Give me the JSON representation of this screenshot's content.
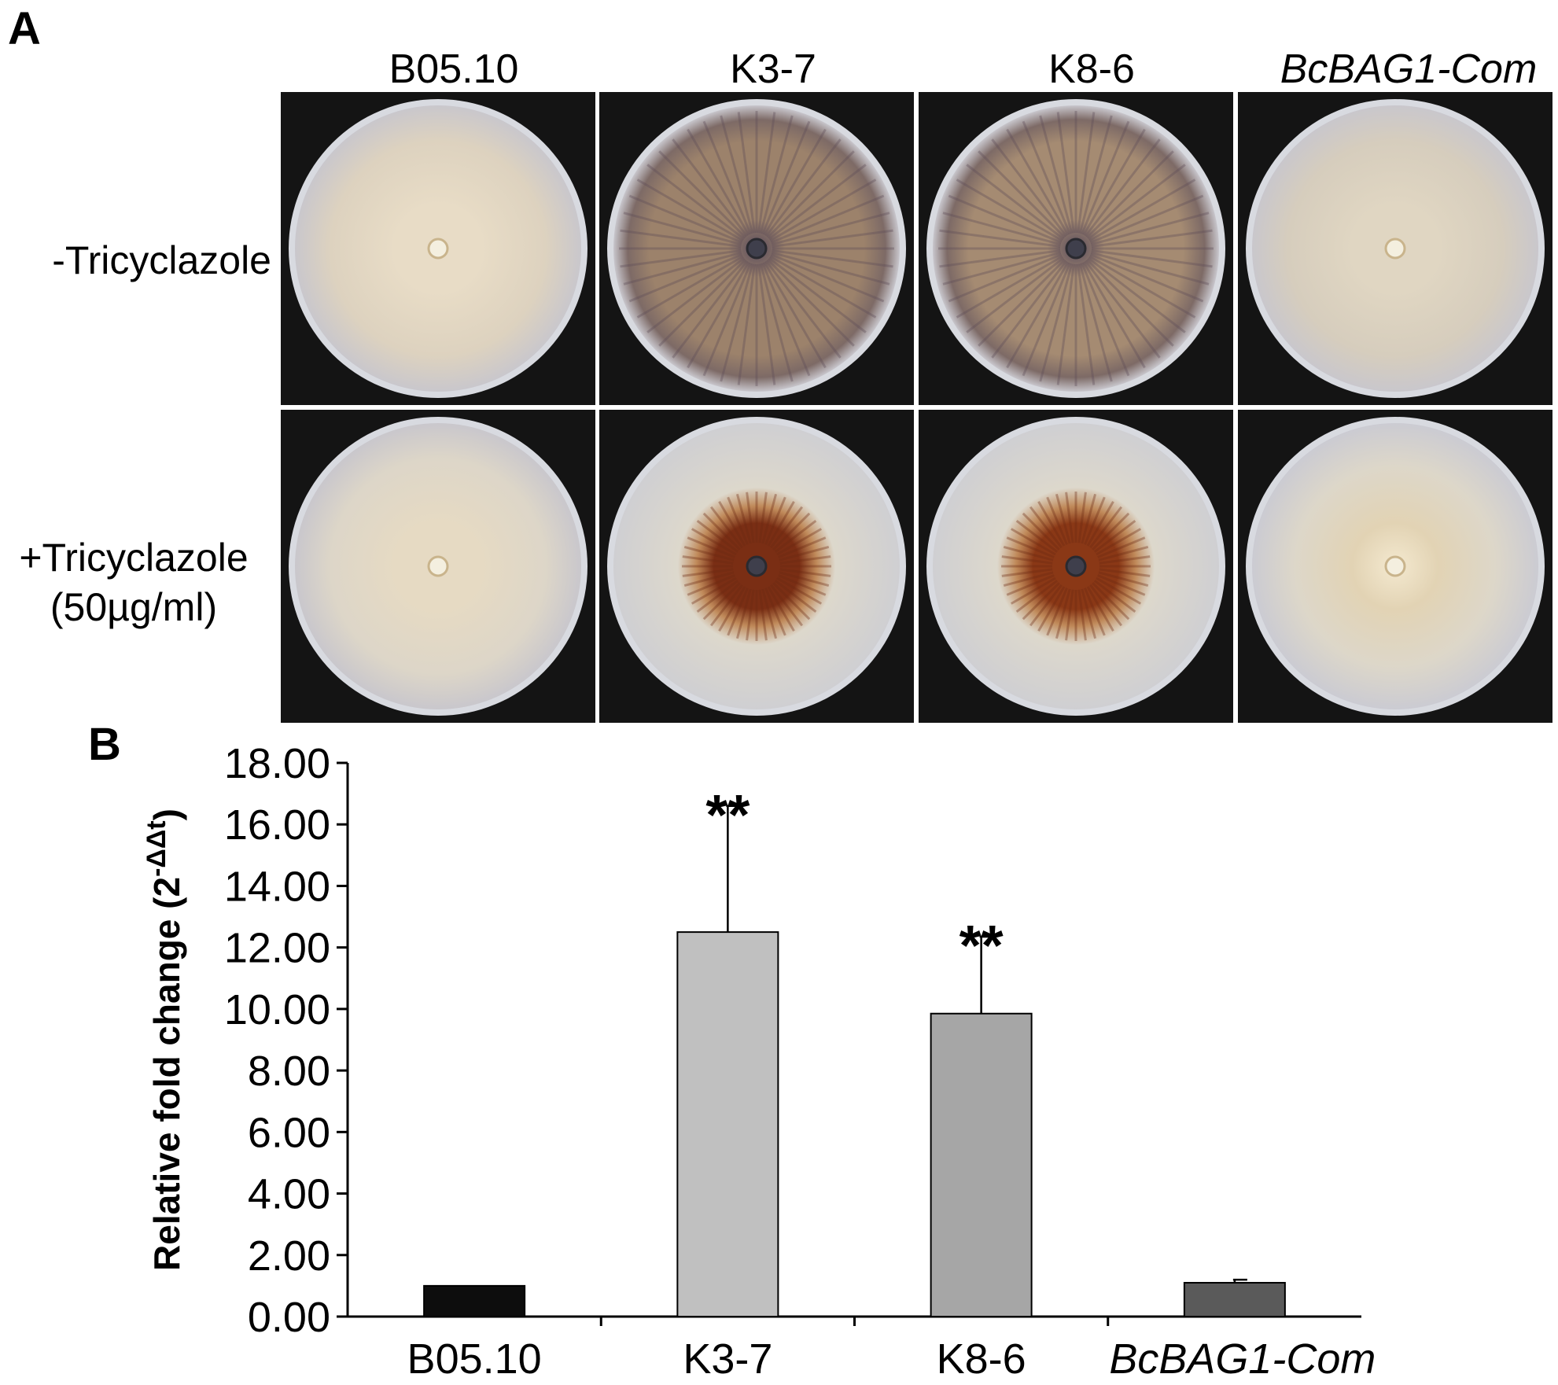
{
  "panel_a": {
    "letter": "A",
    "columns": [
      {
        "label": "B05.10",
        "italic": false
      },
      {
        "label": "K3-7",
        "italic": false
      },
      {
        "label": "K8-6",
        "italic": false
      },
      {
        "label": "BcBAG1-Com",
        "italic": true
      }
    ],
    "rows": [
      {
        "label_lines": [
          "-Tricyclazole"
        ]
      },
      {
        "label_lines": [
          "+Tricyclazole",
          "(50µg/ml)"
        ]
      }
    ],
    "plates": [
      {
        "row": 0,
        "col": 0,
        "pigment": "none",
        "base": "#ddd2bf",
        "center": "#e8dcc6"
      },
      {
        "row": 0,
        "col": 1,
        "pigment": "dark-radial",
        "base": "#9c826b",
        "center": "#6b5a60"
      },
      {
        "row": 0,
        "col": 2,
        "pigment": "dark-radial",
        "base": "#a58b72",
        "center": "#6e5d62"
      },
      {
        "row": 0,
        "col": 3,
        "pigment": "none",
        "base": "#d6cdbd",
        "center": "#e0d6c2"
      },
      {
        "row": 1,
        "col": 0,
        "pigment": "none",
        "base": "#ddd6c8",
        "center": "#e6dac3"
      },
      {
        "row": 1,
        "col": 1,
        "pigment": "brown-center",
        "base": "#ddd8cc",
        "center": "#7a2e14"
      },
      {
        "row": 1,
        "col": 2,
        "pigment": "brown-center",
        "base": "#ddd8cc",
        "center": "#8a3816"
      },
      {
        "row": 1,
        "col": 3,
        "pigment": "faint",
        "base": "#ddd7c9",
        "center": "#e2d3b4"
      }
    ]
  },
  "panel_b": {
    "letter": "B"
  },
  "chart_data": {
    "type": "bar",
    "categories": [
      "B05.10",
      "K3-7",
      "K8-6",
      "BcBAG1-Com"
    ],
    "category_italic": [
      false,
      false,
      false,
      true
    ],
    "values": [
      1.0,
      12.5,
      9.85,
      1.1
    ],
    "errors": [
      0.0,
      4.1,
      2.5,
      0.1
    ],
    "significance": [
      "",
      "**",
      "**",
      ""
    ],
    "bar_colors": [
      "#0d0d0d",
      "#c0c0c0",
      "#a6a6a6",
      "#5a5a5a"
    ],
    "ylabel_main": "Relative fold change (2",
    "ylabel_sup": "-ΔΔt",
    "ylabel_close": ")",
    "ylim": [
      0,
      18
    ],
    "yticks": [
      "0.00",
      "2.00",
      "4.00",
      "6.00",
      "8.00",
      "10.00",
      "12.00",
      "14.00",
      "16.00",
      "18.00"
    ],
    "grid": false,
    "legend": "none"
  }
}
